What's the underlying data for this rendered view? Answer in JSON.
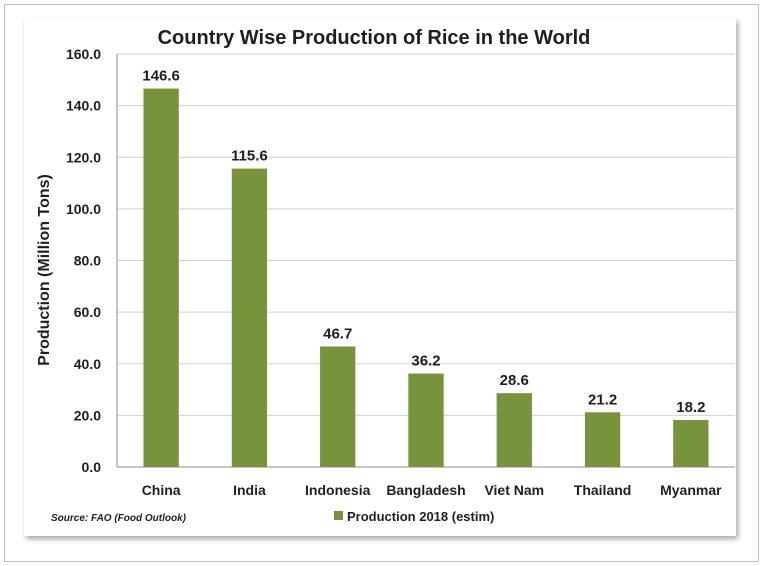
{
  "chart_data": {
    "type": "bar",
    "title": "Country Wise Production of Rice in the World",
    "xlabel": "",
    "ylabel": "Production (Million Tons)",
    "categories": [
      "China",
      "India",
      "Indonesia",
      "Bangladesh",
      "Viet Nam",
      "Thailand",
      "Myanmar"
    ],
    "series": [
      {
        "name": "Production 2018 (estim)",
        "values": [
          146.6,
          115.6,
          46.7,
          36.2,
          28.6,
          21.2,
          18.2
        ]
      }
    ],
    "data_labels": [
      "146.6",
      "115.6",
      "46.7",
      "36.2",
      "28.6",
      "21.2",
      "18.2"
    ],
    "ylim": [
      0,
      160
    ],
    "yticks": [
      "0.0",
      "20.0",
      "40.0",
      "60.0",
      "80.0",
      "100.0",
      "120.0",
      "140.0",
      "160.0"
    ],
    "grid": true,
    "legend_position": "bottom",
    "bar_color": "#77933c",
    "source": "Source: FAO (Food Outlook)"
  }
}
